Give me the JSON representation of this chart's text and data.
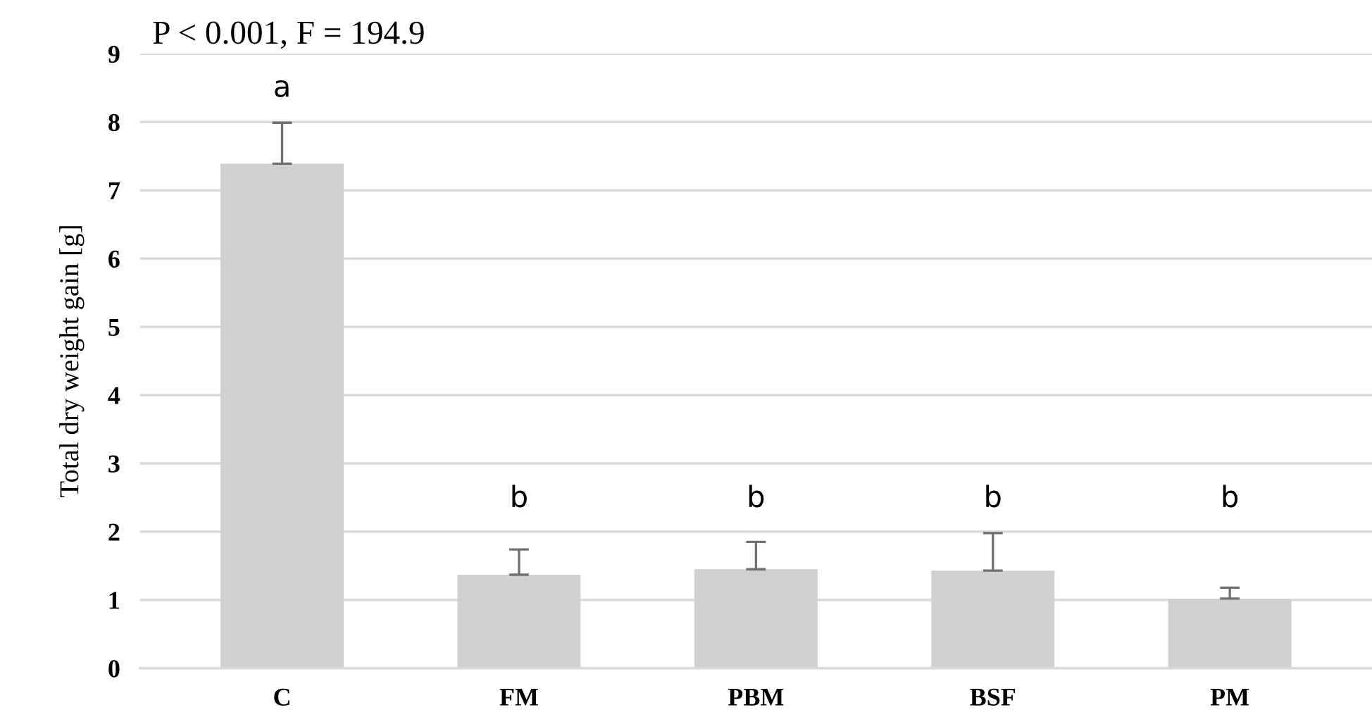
{
  "chart_data": {
    "type": "bar",
    "ylabel": "Total dry weight gain [g]",
    "categories": [
      "C",
      "FM",
      "PBM",
      "BSF",
      "PM"
    ],
    "values": [
      7.39,
      1.37,
      1.45,
      1.43,
      1.02
    ],
    "errors": [
      [
        7.39,
        7.99
      ],
      [
        1.37,
        1.74
      ],
      [
        1.45,
        1.85
      ],
      [
        1.43,
        1.98
      ],
      [
        1.02,
        1.18
      ]
    ],
    "color": "#d0d0d0",
    "ylim": [
      0,
      9
    ],
    "yticks": [
      0,
      1,
      2,
      3,
      4,
      5,
      6,
      7,
      8,
      9
    ],
    "grid": "y",
    "annotations": [
      "P < 0.001, F = 194.9",
      "a",
      "b",
      "b",
      "b",
      "b"
    ]
  }
}
